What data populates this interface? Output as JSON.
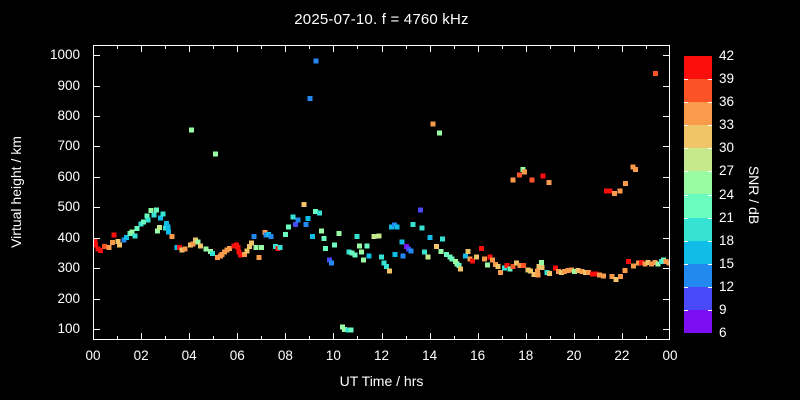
{
  "chart_data": {
    "type": "scatter",
    "title": "2025-07-10. f = 4760 kHz",
    "xlabel": "UT Time / hrs",
    "ylabel": "Virtual height / km",
    "background_color": "#000000",
    "axis_color": "#ffffff",
    "grid": false,
    "xlim": [
      0,
      24
    ],
    "ylim": [
      65,
      1033
    ],
    "x_ticks": [
      "00",
      "02",
      "04",
      "06",
      "08",
      "10",
      "12",
      "14",
      "16",
      "18",
      "20",
      "22",
      "00"
    ],
    "x_tick_hours": [
      0,
      2,
      4,
      6,
      8,
      10,
      12,
      14,
      16,
      18,
      20,
      22,
      24
    ],
    "x_minor_tick_hours": [
      1,
      3,
      5,
      7,
      9,
      11,
      13,
      15,
      17,
      19,
      21,
      23
    ],
    "y_ticks": [
      100,
      200,
      300,
      400,
      500,
      600,
      700,
      800,
      900,
      1000
    ],
    "marker": "square",
    "marker_size_px": 5,
    "colorbar": {
      "label": "SNR / dB",
      "ticks": [
        6,
        9,
        12,
        15,
        18,
        21,
        24,
        27,
        30,
        33,
        36,
        39,
        42
      ],
      "step": 3,
      "colors": [
        "#7d0df2",
        "#4a49f7",
        "#2189f0",
        "#10bde8",
        "#36e3d3",
        "#69fcbe",
        "#99fba4",
        "#c7e98d",
        "#f0c468",
        "#fa9a4b",
        "#fb5226",
        "#fa0f0c"
      ]
    },
    "points_format": "[ut_hour, virtual_height_km, snr_db]",
    "points": [
      [
        0.08,
        391,
        40
      ],
      [
        0.1,
        377,
        40
      ],
      [
        0.2,
        364,
        40
      ],
      [
        0.31,
        358,
        40
      ],
      [
        0.48,
        371,
        37
      ],
      [
        0.66,
        368,
        34
      ],
      [
        0.82,
        385,
        34
      ],
      [
        0.87,
        410,
        40
      ],
      [
        1.05,
        388,
        31
      ],
      [
        1.1,
        377,
        31
      ],
      [
        1.28,
        393,
        13
      ],
      [
        1.39,
        402,
        16
      ],
      [
        1.53,
        415,
        22
      ],
      [
        1.63,
        420,
        25
      ],
      [
        1.74,
        406,
        19
      ],
      [
        1.84,
        431,
        22
      ],
      [
        2.0,
        446,
        19
      ],
      [
        2.11,
        453,
        22
      ],
      [
        2.25,
        472,
        22
      ],
      [
        2.28,
        459,
        19
      ],
      [
        2.42,
        490,
        25
      ],
      [
        2.53,
        475,
        19
      ],
      [
        2.64,
        492,
        22
      ],
      [
        2.68,
        423,
        25
      ],
      [
        2.77,
        434,
        28
      ],
      [
        2.81,
        465,
        16
      ],
      [
        2.92,
        479,
        19
      ],
      [
        3.02,
        432,
        19
      ],
      [
        3.06,
        448,
        16
      ],
      [
        3.11,
        435,
        16
      ],
      [
        3.13,
        420,
        16
      ],
      [
        3.29,
        404,
        34
      ],
      [
        3.5,
        368,
        16
      ],
      [
        3.6,
        368,
        40
      ],
      [
        3.71,
        360,
        31
      ],
      [
        3.82,
        364,
        34
      ],
      [
        4.06,
        377,
        31
      ],
      [
        4.1,
        754,
        25
      ],
      [
        4.15,
        380,
        34
      ],
      [
        4.26,
        393,
        31
      ],
      [
        4.37,
        387,
        25
      ],
      [
        4.47,
        374,
        31
      ],
      [
        4.71,
        364,
        25
      ],
      [
        4.89,
        355,
        25
      ],
      [
        4.98,
        349,
        19
      ],
      [
        5.1,
        676,
        25
      ],
      [
        5.17,
        335,
        34
      ],
      [
        5.3,
        341,
        34
      ],
      [
        5.37,
        346,
        34
      ],
      [
        5.48,
        353,
        34
      ],
      [
        5.58,
        360,
        34
      ],
      [
        5.68,
        366,
        34
      ],
      [
        5.86,
        374,
        40
      ],
      [
        5.96,
        377,
        40
      ],
      [
        6.04,
        368,
        40
      ],
      [
        6.07,
        353,
        40
      ],
      [
        6.13,
        344,
        40
      ],
      [
        6.31,
        346,
        34
      ],
      [
        6.41,
        357,
        31
      ],
      [
        6.51,
        371,
        31
      ],
      [
        6.59,
        384,
        31
      ],
      [
        6.69,
        404,
        13
      ],
      [
        6.79,
        368,
        25
      ],
      [
        6.9,
        335,
        34
      ],
      [
        7.01,
        368,
        25
      ],
      [
        7.15,
        418,
        34
      ],
      [
        7.2,
        409,
        13
      ],
      [
        7.31,
        411,
        16
      ],
      [
        7.41,
        404,
        13
      ],
      [
        7.59,
        371,
        19
      ],
      [
        7.69,
        366,
        40
      ],
      [
        7.77,
        369,
        19
      ],
      [
        8.0,
        411,
        22
      ],
      [
        8.14,
        436,
        22
      ],
      [
        8.31,
        469,
        19
      ],
      [
        8.42,
        444,
        10
      ],
      [
        8.53,
        458,
        13
      ],
      [
        8.77,
        509,
        31
      ],
      [
        8.87,
        444,
        13
      ],
      [
        8.95,
        464,
        16
      ],
      [
        9.02,
        858,
        13
      ],
      [
        9.12,
        404,
        16
      ],
      [
        9.26,
        486,
        22
      ],
      [
        9.27,
        981,
        13
      ],
      [
        9.42,
        481,
        19
      ],
      [
        9.51,
        423,
        25
      ],
      [
        9.6,
        398,
        22
      ],
      [
        9.67,
        366,
        22
      ],
      [
        9.84,
        327,
        10
      ],
      [
        9.92,
        317,
        13
      ],
      [
        10.04,
        377,
        22
      ],
      [
        10.23,
        415,
        25
      ],
      [
        10.37,
        107,
        25
      ],
      [
        10.46,
        100,
        25
      ],
      [
        10.6,
        98,
        19
      ],
      [
        10.64,
        353,
        19
      ],
      [
        10.74,
        98,
        22
      ],
      [
        10.78,
        350,
        22
      ],
      [
        10.89,
        344,
        22
      ],
      [
        10.99,
        404,
        19
      ],
      [
        11.08,
        374,
        25
      ],
      [
        11.17,
        353,
        25
      ],
      [
        11.26,
        327,
        25
      ],
      [
        11.4,
        374,
        22
      ],
      [
        11.47,
        341,
        16
      ],
      [
        11.68,
        404,
        28
      ],
      [
        11.89,
        407,
        28
      ],
      [
        12.0,
        338,
        19
      ],
      [
        12.1,
        317,
        19
      ],
      [
        12.21,
        306,
        19
      ],
      [
        12.33,
        291,
        31
      ],
      [
        12.42,
        436,
        16
      ],
      [
        12.54,
        442,
        13
      ],
      [
        12.56,
        346,
        16
      ],
      [
        12.65,
        436,
        16
      ],
      [
        12.86,
        387,
        16
      ],
      [
        12.9,
        341,
        13
      ],
      [
        13.04,
        371,
        7
      ],
      [
        13.13,
        364,
        10
      ],
      [
        13.23,
        357,
        13
      ],
      [
        13.32,
        444,
        19
      ],
      [
        13.62,
        491,
        10
      ],
      [
        13.69,
        433,
        19
      ],
      [
        13.79,
        353,
        19
      ],
      [
        13.93,
        338,
        28
      ],
      [
        14.01,
        401,
        16
      ],
      [
        14.15,
        773,
        34
      ],
      [
        14.29,
        371,
        31
      ],
      [
        14.42,
        745,
        25
      ],
      [
        14.48,
        355,
        25
      ],
      [
        14.53,
        396,
        19
      ],
      [
        14.7,
        346,
        22
      ],
      [
        14.84,
        338,
        22
      ],
      [
        14.94,
        331,
        22
      ],
      [
        15.08,
        322,
        25
      ],
      [
        15.15,
        315,
        25
      ],
      [
        15.22,
        309,
        22
      ],
      [
        15.29,
        298,
        31
      ],
      [
        15.5,
        341,
        16
      ],
      [
        15.59,
        355,
        31
      ],
      [
        15.68,
        331,
        34
      ],
      [
        15.78,
        324,
        40
      ],
      [
        15.96,
        338,
        31
      ],
      [
        16.15,
        366,
        40
      ],
      [
        16.29,
        331,
        34
      ],
      [
        16.4,
        311,
        25
      ],
      [
        16.51,
        338,
        40
      ],
      [
        16.61,
        327,
        34
      ],
      [
        16.75,
        313,
        34
      ],
      [
        16.84,
        306,
        31
      ],
      [
        16.95,
        287,
        34
      ],
      [
        17.12,
        302,
        19
      ],
      [
        17.23,
        309,
        40
      ],
      [
        17.34,
        298,
        22
      ],
      [
        17.48,
        306,
        37
      ],
      [
        17.48,
        590,
        34
      ],
      [
        17.62,
        317,
        31
      ],
      [
        17.75,
        606,
        37
      ],
      [
        17.76,
        309,
        34
      ],
      [
        17.89,
        625,
        25
      ],
      [
        17.9,
        309,
        37
      ],
      [
        17.95,
        617,
        34
      ],
      [
        18.09,
        295,
        31
      ],
      [
        18.2,
        291,
        31
      ],
      [
        18.27,
        590,
        37
      ],
      [
        18.34,
        280,
        31
      ],
      [
        18.48,
        291,
        34
      ],
      [
        18.5,
        278,
        34
      ],
      [
        18.55,
        306,
        31
      ],
      [
        18.66,
        319,
        25
      ],
      [
        18.68,
        303,
        31
      ],
      [
        18.72,
        603,
        40
      ],
      [
        18.89,
        286,
        19
      ],
      [
        18.96,
        581,
        34
      ],
      [
        18.98,
        284,
        31
      ],
      [
        19.23,
        301,
        40
      ],
      [
        19.37,
        289,
        34
      ],
      [
        19.48,
        286,
        31
      ],
      [
        19.62,
        289,
        34
      ],
      [
        19.76,
        293,
        34
      ],
      [
        19.9,
        295,
        34
      ],
      [
        20.03,
        289,
        25
      ],
      [
        20.17,
        293,
        31
      ],
      [
        20.34,
        289,
        34
      ],
      [
        20.48,
        286,
        31
      ],
      [
        20.62,
        286,
        34
      ],
      [
        20.78,
        282,
        40
      ],
      [
        20.92,
        282,
        40
      ],
      [
        21.06,
        278,
        34
      ],
      [
        21.24,
        275,
        34
      ],
      [
        21.36,
        554,
        40
      ],
      [
        21.5,
        554,
        40
      ],
      [
        21.59,
        273,
        34
      ],
      [
        21.69,
        546,
        34
      ],
      [
        21.76,
        264,
        31
      ],
      [
        21.91,
        554,
        34
      ],
      [
        21.94,
        273,
        34
      ],
      [
        22.12,
        293,
        34
      ],
      [
        22.14,
        579,
        34
      ],
      [
        22.28,
        322,
        40
      ],
      [
        22.46,
        633,
        34
      ],
      [
        22.49,
        308,
        34
      ],
      [
        22.56,
        625,
        34
      ],
      [
        22.7,
        317,
        34
      ],
      [
        22.81,
        319,
        40
      ],
      [
        22.95,
        314,
        34
      ],
      [
        23.09,
        319,
        31
      ],
      [
        23.23,
        314,
        34
      ],
      [
        23.37,
        319,
        34
      ],
      [
        23.4,
        940,
        37
      ],
      [
        23.51,
        314,
        25
      ],
      [
        23.65,
        322,
        19
      ],
      [
        23.74,
        328,
        22
      ],
      [
        23.84,
        322,
        34
      ],
      [
        23.95,
        317,
        34
      ]
    ]
  }
}
